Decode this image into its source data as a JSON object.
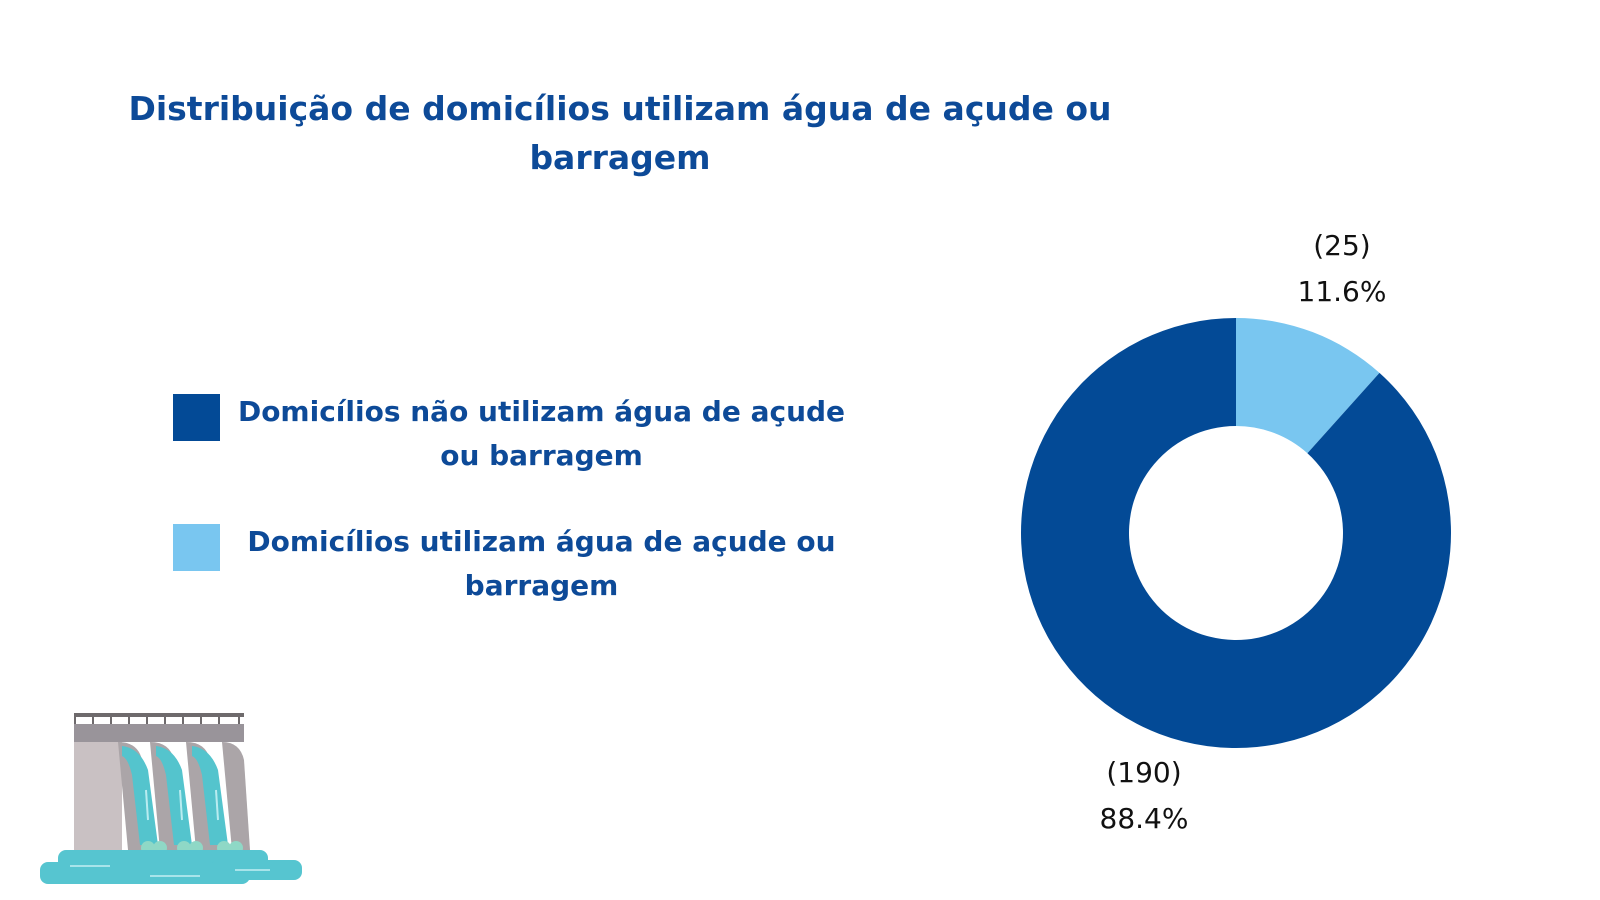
{
  "chart_data": {
    "type": "pie",
    "style": "donut",
    "title": "Distribuição de domicílios utilizam água de açude ou barragem",
    "legend_position": "left",
    "slices": [
      {
        "name": "Domicílios utilizam água de açude ou barragem",
        "value": 25,
        "percent_label": "11.6%",
        "count_label": "(25)",
        "color": "#79c6f0"
      },
      {
        "name": "Domicílios não utilizam água de açude ou barragem",
        "value": 190,
        "percent_label": "88.4%",
        "count_label": "(190)",
        "color": "#034a96"
      }
    ],
    "legend": [
      {
        "label": "Domicílios não utilizam água de açude ou barragem",
        "color": "#034a96"
      },
      {
        "label": "Domicílios utilizam água de açude ou barragem",
        "color": "#79c6f0"
      }
    ]
  },
  "icons": {
    "illustration": "dam-icon"
  },
  "colors": {
    "title": "#0d4a98",
    "dark_blue": "#034a96",
    "light_blue": "#79c6f0"
  }
}
